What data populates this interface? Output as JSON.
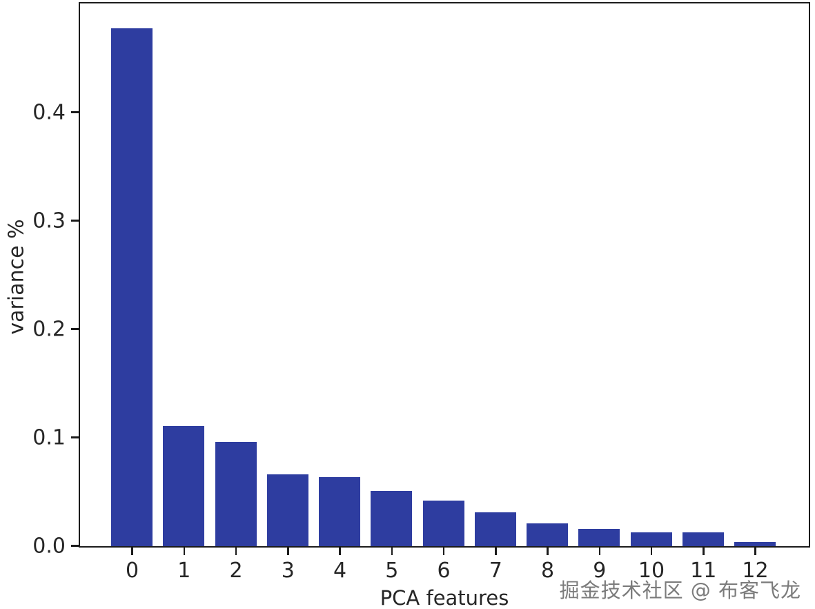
{
  "watermark": {
    "text": "掘金技术社区 @ 布客飞龙"
  },
  "colors": {
    "bar": "#2e3da0",
    "spine": "#1b1b1b",
    "text": "#262626",
    "watermark_text": "#7b7b7b",
    "background": "#ffffff"
  },
  "chart_data": {
    "type": "bar",
    "title": "",
    "xlabel": "PCA features",
    "ylabel": "variance %",
    "categories": [
      "0",
      "1",
      "2",
      "3",
      "4",
      "5",
      "6",
      "7",
      "8",
      "9",
      "10",
      "11",
      "12"
    ],
    "values": [
      0.478,
      0.111,
      0.096,
      0.066,
      0.064,
      0.051,
      0.042,
      0.031,
      0.021,
      0.016,
      0.013,
      0.013,
      0.004
    ],
    "yticks": [
      0.0,
      0.1,
      0.2,
      0.3,
      0.4
    ],
    "ytick_labels": [
      "0.0",
      "0.1",
      "0.2",
      "0.3",
      "0.4"
    ],
    "ylim": [
      0,
      0.5
    ],
    "grid": false,
    "legend": null,
    "bar_color": "#2e3da0"
  }
}
